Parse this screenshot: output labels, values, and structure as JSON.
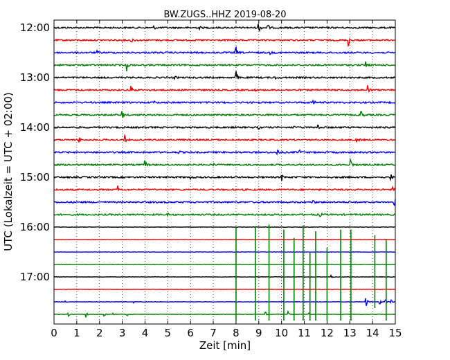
{
  "chart_data": {
    "type": "line",
    "title": "BW.ZUGS..HHZ 2019-08-20",
    "xlabel": "Zeit  [min]",
    "ylabel": "UTC (Lokalzeit = UTC + 02:00)",
    "xlim": [
      0,
      15
    ],
    "x_ticks": [
      "0",
      "1",
      "2",
      "3",
      "4",
      "5",
      "6",
      "7",
      "8",
      "9",
      "10",
      "11",
      "12",
      "13",
      "14",
      "15"
    ],
    "y_tick_labels": [
      "12:00",
      "13:00",
      "14:00",
      "15:00",
      "16:00",
      "17:00"
    ],
    "grid": "vertical-dotted",
    "trace_colors": [
      "#000000",
      "#ff0000",
      "#0000ff",
      "#008000"
    ],
    "traces": [
      {
        "start": "12:00",
        "color": "#000000",
        "events": [
          [
            9.0,
            8
          ],
          [
            9.4,
            5
          ],
          [
            4.4,
            2
          ],
          [
            6.4,
            2
          ]
        ]
      },
      {
        "start": "12:15",
        "color": "#ff0000",
        "events": [
          [
            3.4,
            6
          ],
          [
            12.95,
            8
          ]
        ]
      },
      {
        "start": "12:30",
        "color": "#0000ff",
        "events": [
          [
            8.0,
            7
          ],
          [
            1.9,
            2
          ],
          [
            9.5,
            2
          ]
        ]
      },
      {
        "start": "12:45",
        "color": "#008000",
        "events": [
          [
            3.2,
            8
          ],
          [
            13.7,
            6
          ]
        ]
      },
      {
        "start": "13:00",
        "color": "#000000",
        "events": [
          [
            8.0,
            9
          ],
          [
            9.7,
            3
          ],
          [
            5.3,
            2
          ]
        ]
      },
      {
        "start": "13:15",
        "color": "#ff0000",
        "events": [
          [
            3.4,
            7
          ],
          [
            13.8,
            7
          ],
          [
            8.8,
            2
          ]
        ]
      },
      {
        "start": "13:30",
        "color": "#0000ff",
        "events": [
          [
            4.4,
            2
          ],
          [
            11.4,
            3
          ],
          [
            7.4,
            2
          ]
        ]
      },
      {
        "start": "13:45",
        "color": "#008000",
        "events": [
          [
            3.0,
            6
          ],
          [
            13.5,
            7
          ]
        ]
      },
      {
        "start": "14:00",
        "color": "#000000",
        "events": [
          [
            11.6,
            7
          ],
          [
            10.5,
            4
          ],
          [
            9.0,
            2
          ]
        ]
      },
      {
        "start": "14:15",
        "color": "#ff0000",
        "events": [
          [
            1.1,
            5
          ],
          [
            3.1,
            7
          ],
          [
            13.3,
            6
          ]
        ]
      },
      {
        "start": "14:30",
        "color": "#0000ff",
        "events": [
          [
            9.8,
            8
          ],
          [
            10.8,
            3
          ],
          [
            5.5,
            2
          ]
        ]
      },
      {
        "start": "14:45",
        "color": "#008000",
        "events": [
          [
            4.0,
            7
          ],
          [
            13.05,
            8
          ],
          [
            7.0,
            2
          ]
        ]
      },
      {
        "start": "15:00",
        "color": "#000000",
        "events": [
          [
            10.0,
            5
          ],
          [
            14.8,
            5
          ],
          [
            6.0,
            2
          ]
        ]
      },
      {
        "start": "15:15",
        "color": "#ff0000",
        "events": [
          [
            2.8,
            7
          ],
          [
            14.9,
            8
          ]
        ]
      },
      {
        "start": "15:30",
        "color": "#0000ff",
        "events": [
          [
            14.95,
            10
          ],
          [
            11.4,
            3
          ]
        ]
      },
      {
        "start": "15:45",
        "color": "#008000",
        "events": [
          [
            11.7,
            3
          ],
          [
            5.0,
            2
          ]
        ]
      },
      {
        "start": "16:00",
        "color": "#000000",
        "events": []
      },
      {
        "start": "16:15",
        "color": "#ff0000",
        "events": []
      },
      {
        "start": "16:30",
        "color": "#0000ff",
        "events": []
      },
      {
        "start": "16:45",
        "color": "#008000",
        "events": []
      },
      {
        "start": "17:00",
        "color": "#000000",
        "events": [
          [
            12.2,
            2
          ]
        ]
      },
      {
        "start": "17:15",
        "color": "#ff0000",
        "events": []
      },
      {
        "start": "17:30",
        "color": "#0000ff",
        "events": [
          [
            13.7,
            9
          ],
          [
            14.3,
            6
          ],
          [
            14.55,
            7
          ],
          [
            14.8,
            5
          ],
          [
            0.5,
            2
          ],
          [
            3.5,
            2
          ]
        ]
      },
      {
        "start": "17:45",
        "color": "#008000",
        "events": [
          [
            0.6,
            7
          ],
          [
            1.4,
            6
          ],
          [
            2.2,
            4
          ],
          [
            2.6,
            3
          ],
          [
            3.2,
            3
          ],
          [
            9.3,
            5
          ],
          [
            10.3,
            4
          ],
          [
            11.2,
            4
          ]
        ]
      }
    ],
    "spikes": [
      {
        "x": 8.0,
        "from": "16:00",
        "to": "17:45"
      },
      {
        "x": 8.85,
        "from": "15:59",
        "to": "17:45"
      },
      {
        "x": 9.45,
        "from": "15:57",
        "to": "17:45"
      },
      {
        "x": 10.1,
        "from": "16:03",
        "to": "17:45"
      },
      {
        "x": 10.55,
        "from": "16:13",
        "to": "17:45"
      },
      {
        "x": 10.95,
        "from": "15:58",
        "to": "17:45"
      },
      {
        "x": 11.25,
        "from": "16:30",
        "to": "17:45"
      },
      {
        "x": 11.5,
        "from": "16:05",
        "to": "17:45"
      },
      {
        "x": 12.0,
        "from": "16:25",
        "to": "17:45"
      },
      {
        "x": 12.6,
        "from": "16:03",
        "to": "17:45"
      },
      {
        "x": 13.05,
        "from": "16:03",
        "to": "17:45"
      },
      {
        "x": 14.1,
        "from": "16:10",
        "to": "17:40"
      },
      {
        "x": 14.6,
        "from": "16:15",
        "to": "17:45"
      }
    ]
  }
}
